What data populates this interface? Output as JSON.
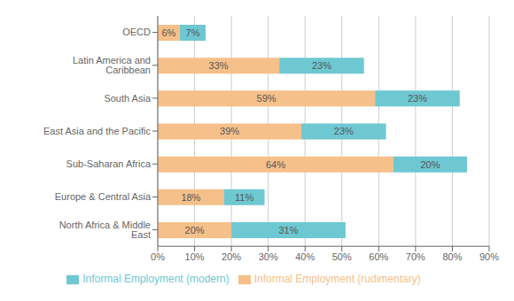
{
  "chart_data": {
    "type": "bar",
    "orientation": "horizontal",
    "stacked": true,
    "data_labels": true,
    "grid": "x",
    "legend": "bottom",
    "categories": [
      "North Africa & Middle East",
      "Europe & Central Asia",
      "Sub-Saharan Africa",
      "East Asia and the Pacific",
      "South Asia",
      "Latin America and Caribbean",
      "OECD"
    ],
    "series": [
      {
        "name": "Informal Employment (rudimentary)",
        "color": "#F5C08A",
        "values": [
          20,
          18,
          64,
          39,
          59,
          33,
          6
        ],
        "value_labels": [
          "20%",
          "18%",
          "64%",
          "39%",
          "59%",
          "33%",
          "6%"
        ]
      },
      {
        "name": "Informal Employment (modern)",
        "color": "#6EC8D2",
        "values": [
          31,
          11,
          20,
          23,
          23,
          23,
          7
        ],
        "value_labels": [
          "31%",
          "11%",
          "20%",
          "23%",
          "23%",
          "23%",
          "7%"
        ]
      }
    ],
    "xlim": [
      0,
      90
    ],
    "xticks": [
      {
        "value": 0,
        "label": "0%"
      },
      {
        "value": 10,
        "label": "10%"
      },
      {
        "value": 20,
        "label": "20%"
      },
      {
        "value": 30,
        "label": "30%"
      },
      {
        "value": 40,
        "label": "40%"
      },
      {
        "value": 50,
        "label": "50%"
      },
      {
        "value": 60,
        "label": "60%"
      },
      {
        "value": 70,
        "label": "70%"
      },
      {
        "value": 80,
        "label": "80%"
      },
      {
        "value": 90,
        "label": "90%"
      }
    ]
  }
}
